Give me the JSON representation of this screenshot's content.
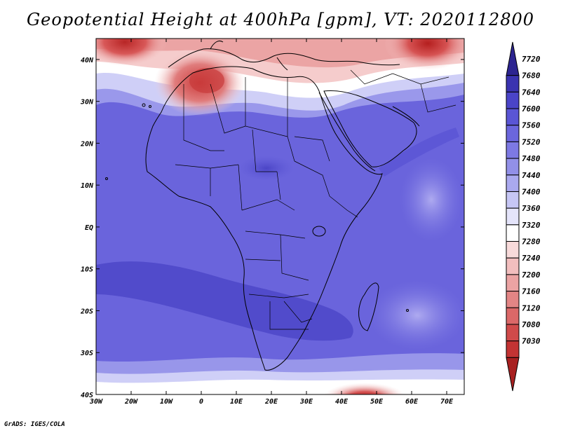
{
  "title": "Geopotential Height at 400hPa [gpm], VT: 2020112800",
  "credit": "GrADS: IGES/COLA",
  "map": {
    "lon_range": [
      -30,
      75
    ],
    "lat_range": [
      -40,
      45
    ],
    "lon_ticks": [
      "30W",
      "20W",
      "10W",
      "0",
      "10E",
      "20E",
      "30E",
      "40E",
      "50E",
      "60E",
      "70E"
    ],
    "lat_ticks": [
      "40N",
      "30N",
      "20N",
      "10N",
      "EQ",
      "10S",
      "20S",
      "30S",
      "40S"
    ]
  },
  "colorbar": {
    "levels": [
      "7720",
      "7680",
      "7640",
      "7600",
      "7560",
      "7520",
      "7480",
      "7440",
      "7400",
      "7360",
      "7320",
      "7280",
      "7240",
      "7200",
      "7160",
      "7120",
      "7080",
      "7030"
    ],
    "colors": [
      "#2c2490",
      "#3a33b0",
      "#4a44c8",
      "#5a55d5",
      "#6b66dd",
      "#7d79e3",
      "#9290e8",
      "#aaa9ef",
      "#c6c6f5",
      "#e4e4fa",
      "#ffffff",
      "#f8dada",
      "#f2bebe",
      "#eba3a3",
      "#e38585",
      "#db6868",
      "#d04a4a",
      "#c33333",
      "#a82020"
    ]
  }
}
